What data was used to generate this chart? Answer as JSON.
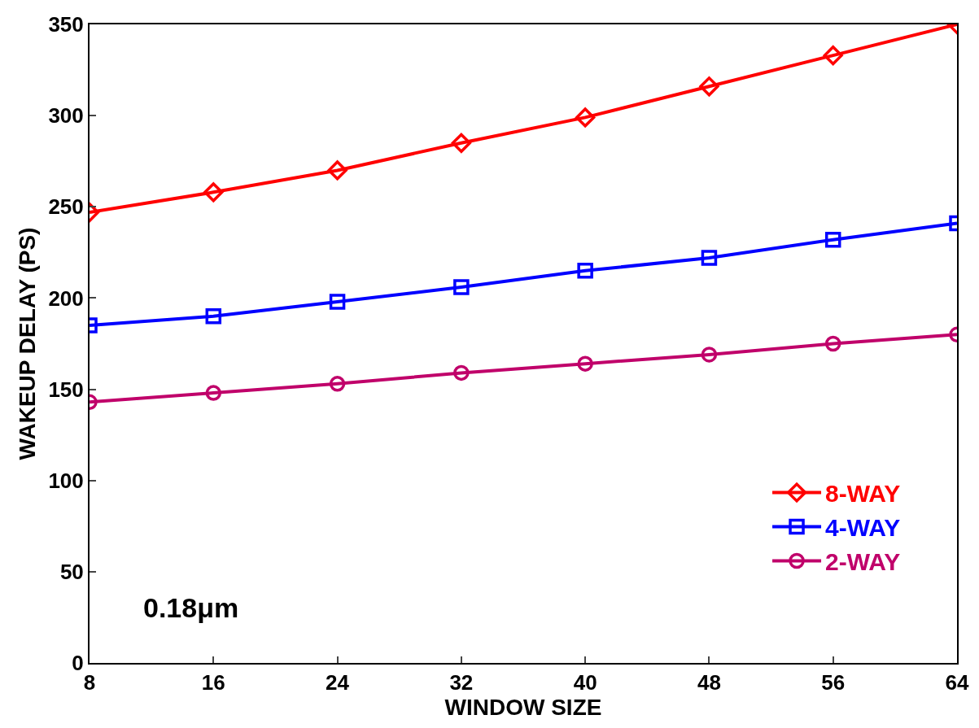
{
  "chart_data": {
    "type": "line",
    "xlabel": "WINDOW SIZE",
    "ylabel": "WAKEUP DELAY (PS)",
    "x": [
      8,
      16,
      24,
      32,
      40,
      48,
      56,
      64
    ],
    "series": [
      {
        "name": "8-WAY",
        "color": "#ff0000",
        "marker": "diamond",
        "values": [
          247,
          258,
          270,
          285,
          299,
          316,
          333,
          350
        ]
      },
      {
        "name": "4-WAY",
        "color": "#0000ff",
        "marker": "square",
        "values": [
          185,
          190,
          198,
          206,
          215,
          222,
          232,
          241
        ]
      },
      {
        "name": "2-WAY",
        "color": "#c0006a",
        "marker": "circle",
        "values": [
          143,
          148,
          153,
          159,
          164,
          169,
          175,
          180
        ]
      }
    ],
    "xlim": [
      8,
      64
    ],
    "xticks": [
      8,
      16,
      24,
      32,
      40,
      48,
      56,
      64
    ],
    "ylim": [
      0,
      350
    ],
    "yticks": [
      0,
      50,
      100,
      150,
      200,
      250,
      300,
      350
    ],
    "legend": "bottom right",
    "line_style": "solid",
    "annotations": [
      "0.18μm"
    ]
  }
}
